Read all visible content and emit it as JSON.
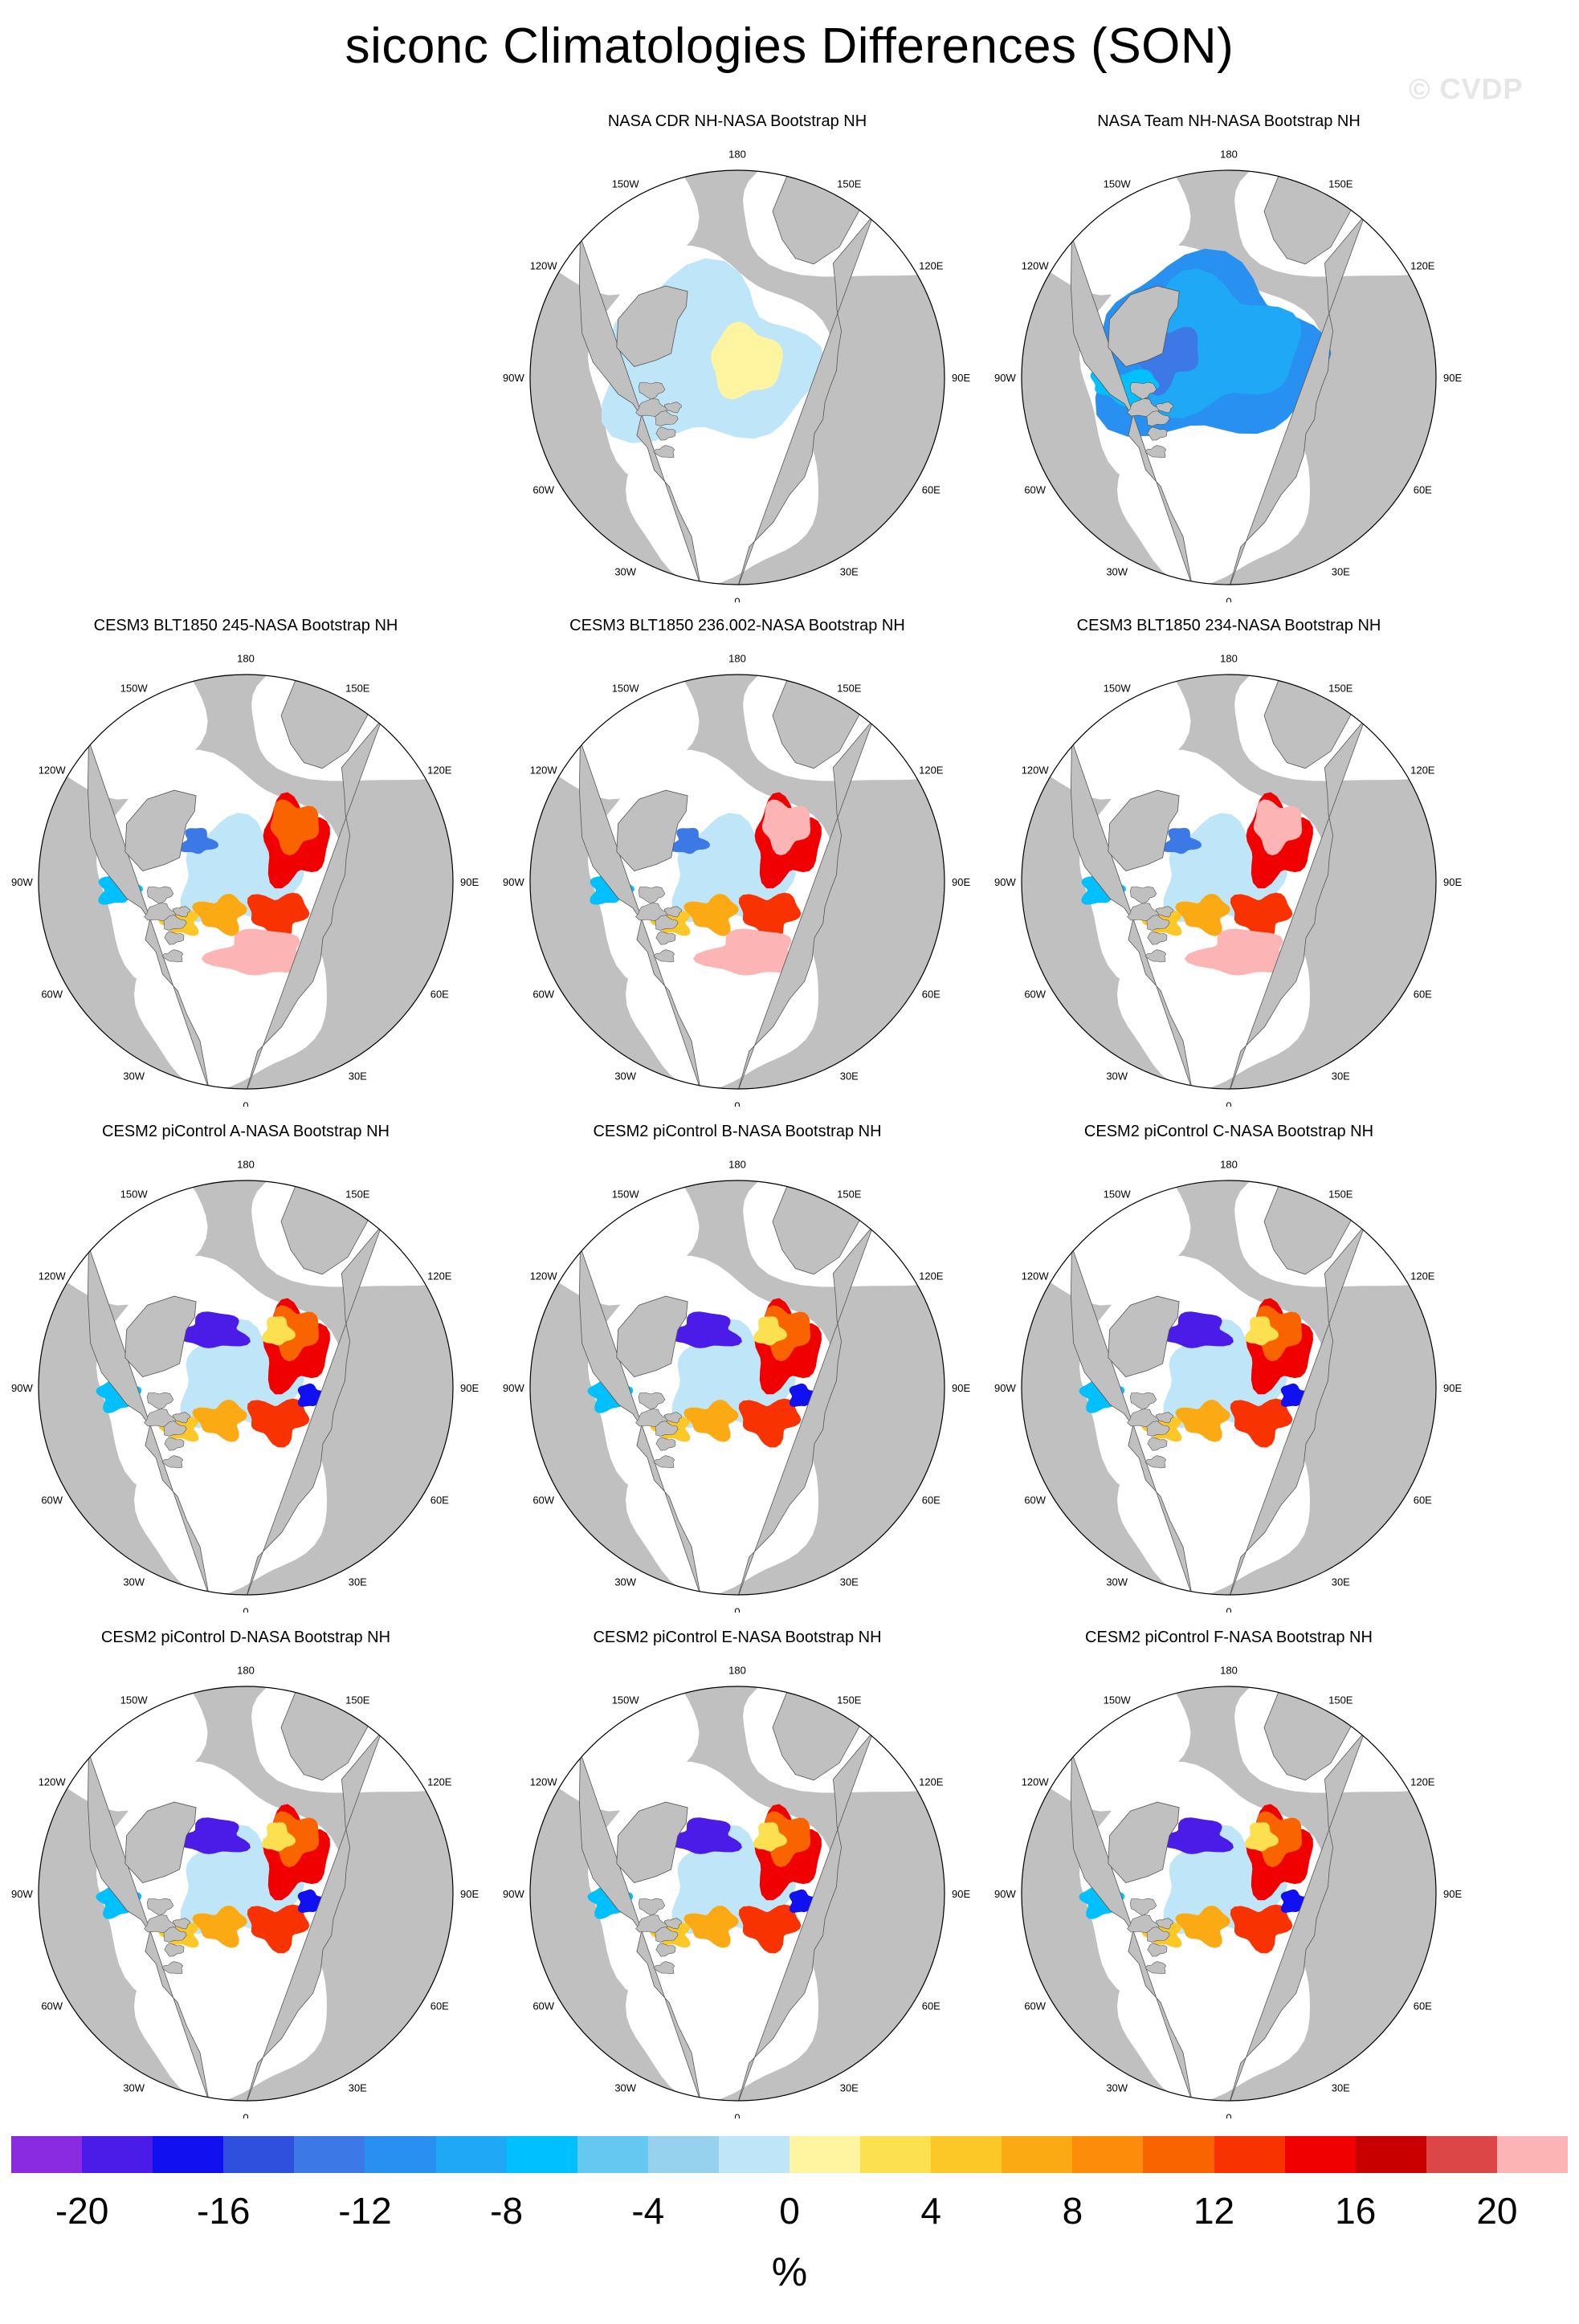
{
  "figure": {
    "title": "siconc Climatologies Differences (SON)",
    "watermark": "© CVDP"
  },
  "map_style": {
    "projection": "north-polar-stereographic",
    "land_color": "#c0c0c0",
    "ocean_color": "#ffffff",
    "coast_color": "#555555"
  },
  "longitude_labels": [
    "180",
    "150E",
    "120E",
    "90E",
    "60E",
    "30E",
    "0",
    "30W",
    "60W",
    "90W",
    "120W",
    "150W"
  ],
  "panels": [
    {
      "title": "NASA CDR NH-NASA Bootstrap NH",
      "pattern": "cdr"
    },
    {
      "title": "NASA Team NH-NASA Bootstrap NH",
      "pattern": "team"
    },
    {
      "title": "CESM3 BLT1850 245-NASA Bootstrap NH",
      "pattern": "cesm3"
    },
    {
      "title": "CESM3 BLT1850 236.002-NASA Bootstrap NH",
      "pattern": "cesm3b"
    },
    {
      "title": "CESM3 BLT1850 234-NASA Bootstrap NH",
      "pattern": "cesm3b"
    },
    {
      "title": "CESM2 piControl A-NASA Bootstrap NH",
      "pattern": "cesm2"
    },
    {
      "title": "CESM2 piControl B-NASA Bootstrap NH",
      "pattern": "cesm2"
    },
    {
      "title": "CESM2 piControl C-NASA Bootstrap NH",
      "pattern": "cesm2"
    },
    {
      "title": "CESM2 piControl D-NASA Bootstrap NH",
      "pattern": "cesm2"
    },
    {
      "title": "CESM2 piControl E-NASA Bootstrap NH",
      "pattern": "cesm2"
    },
    {
      "title": "CESM2 piControl F-NASA Bootstrap NH",
      "pattern": "cesm2"
    }
  ],
  "colorbar": {
    "unit": "%",
    "tick_labels": [
      "-20",
      "-16",
      "-12",
      "-8",
      "-4",
      "0",
      "4",
      "8",
      "12",
      "16",
      "20"
    ],
    "colors": [
      "#8a2be2",
      "#4b1ce8",
      "#1010f0",
      "#2e50dc",
      "#3c78e6",
      "#2890f0",
      "#1ea8f5",
      "#00c0ff",
      "#64c8f0",
      "#96d2ee",
      "#bee6f8",
      "#fff5a0",
      "#fde050",
      "#fcc828",
      "#fcaa14",
      "#fc8c0a",
      "#fa6400",
      "#f83200",
      "#f00000",
      "#c80000",
      "#dc4646",
      "#fcb4b4"
    ]
  }
}
